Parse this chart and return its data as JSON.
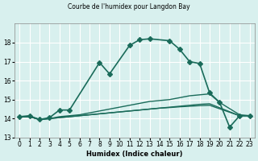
{
  "title": "Courbe de l'humidex pour Langdon Bay",
  "xlabel": "Humidex (Indice chaleur)",
  "x_values": [
    0,
    1,
    2,
    3,
    4,
    5,
    6,
    7,
    8,
    9,
    10,
    11,
    12,
    13,
    14,
    15,
    16,
    17,
    18,
    19,
    20,
    21,
    22,
    23
  ],
  "series1": [
    14.1,
    14.15,
    13.95,
    14.05,
    14.45,
    14.45,
    null,
    null,
    16.95,
    16.35,
    null,
    17.85,
    18.15,
    18.2,
    null,
    18.1,
    17.65,
    17.0,
    16.9,
    15.35,
    14.85,
    13.55,
    14.15,
    14.15
  ],
  "series2": [
    14.1,
    14.1,
    13.95,
    14.0,
    14.1,
    14.15,
    14.2,
    14.3,
    14.4,
    14.5,
    14.6,
    14.7,
    14.8,
    14.9,
    14.95,
    15.0,
    15.1,
    15.2,
    15.25,
    15.3,
    14.85,
    null,
    14.2,
    14.15
  ],
  "series3": [
    14.1,
    14.1,
    13.95,
    14.0,
    14.05,
    14.1,
    14.15,
    14.2,
    14.25,
    14.3,
    14.35,
    14.4,
    14.45,
    14.5,
    14.55,
    14.6,
    14.65,
    14.7,
    14.75,
    14.78,
    null,
    null,
    14.15,
    14.15
  ],
  "series4": [
    14.1,
    14.1,
    13.95,
    14.0,
    14.05,
    14.1,
    14.15,
    14.2,
    14.25,
    14.3,
    14.35,
    14.4,
    14.45,
    14.5,
    14.55,
    14.58,
    14.62,
    14.65,
    14.68,
    14.7,
    null,
    null,
    14.15,
    14.15
  ],
  "line_color": "#1a6b5a",
  "bg_color": "#d8f0ee",
  "grid_color": "#ffffff",
  "ylim": [
    13.0,
    19.0
  ],
  "xlim": [
    -0.5,
    23.5
  ],
  "yticks": [
    13,
    14,
    15,
    16,
    17,
    18
  ],
  "xticks": [
    0,
    1,
    2,
    3,
    4,
    5,
    6,
    7,
    8,
    9,
    10,
    11,
    12,
    13,
    14,
    15,
    16,
    17,
    18,
    19,
    20,
    21,
    22,
    23
  ]
}
